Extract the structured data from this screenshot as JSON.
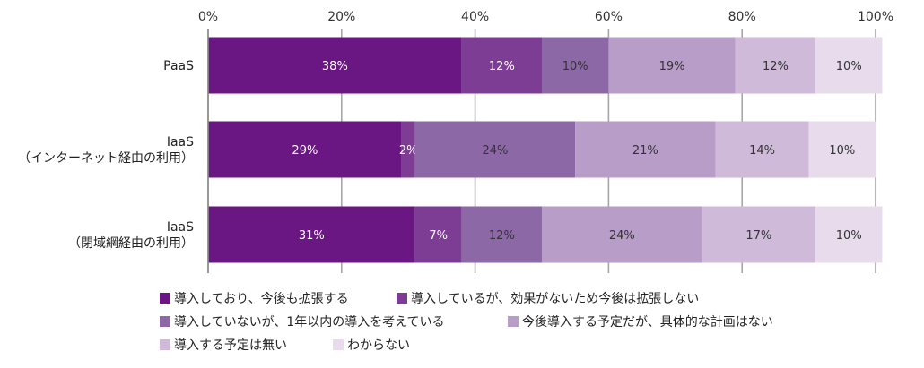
{
  "chart_data": {
    "type": "bar",
    "orientation": "horizontal",
    "stacked": true,
    "title": "",
    "xlabel": "",
    "ylabel": "",
    "xlim": [
      0,
      100
    ],
    "x_ticks": [
      "0%",
      "20%",
      "40%",
      "60%",
      "80%",
      "100%"
    ],
    "categories": [
      "PaaS",
      "IaaS\n（インターネット経由の利用）",
      "IaaS\n（閉域網経由の利用）"
    ],
    "category_lines": [
      [
        "PaaS"
      ],
      [
        "IaaS",
        "（インターネット経由の利用）"
      ],
      [
        "IaaS",
        "（閉域網経由の利用）"
      ]
    ],
    "series": [
      {
        "name": "導入しており、今後も拡張する",
        "color": "#6a1683",
        "label_color": "#ffffff",
        "values": [
          38,
          29,
          31
        ]
      },
      {
        "name": "導入しているが、効果がないため今後は拡張しない",
        "color": "#7e3d95",
        "label_color": "#ffffff",
        "values": [
          12,
          2,
          7
        ]
      },
      {
        "name": "導入していないが、1年以内の導入を考えている",
        "color": "#8c68a6",
        "label_color": "#333333",
        "values": [
          10,
          24,
          12
        ]
      },
      {
        "name": "今後導入する予定だが、具体的な計画はない",
        "color": "#b79dc7",
        "label_color": "#333333",
        "values": [
          19,
          21,
          24
        ]
      },
      {
        "name": "導入する予定は無い",
        "color": "#cfbad9",
        "label_color": "#333333",
        "values": [
          12,
          14,
          17
        ]
      },
      {
        "name": "わからない",
        "color": "#e7dbec",
        "label_color": "#333333",
        "values": [
          10,
          10,
          10
        ]
      }
    ],
    "data_labels": [
      [
        "38%",
        "12%",
        "10%",
        "19%",
        "12%",
        "10%"
      ],
      [
        "29%",
        "2%",
        "24%",
        "21%",
        "14%",
        "10%"
      ],
      [
        "31%",
        "7%",
        "12%",
        "24%",
        "17%",
        "10%"
      ]
    ],
    "grid": true,
    "legend_position": "bottom"
  }
}
